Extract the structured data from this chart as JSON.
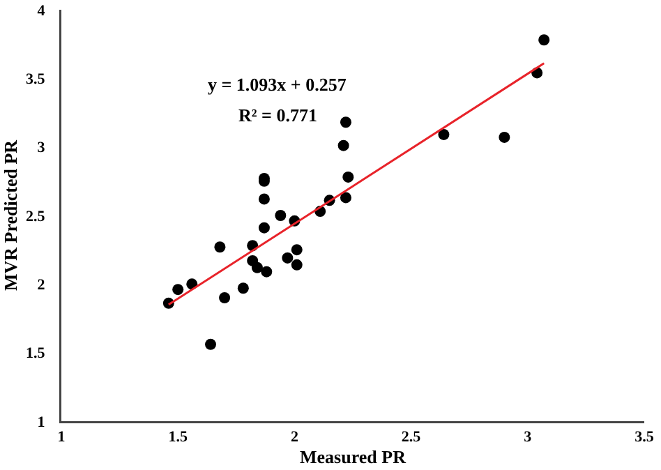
{
  "chart_data": {
    "type": "scatter",
    "xlabel": "Measured PR",
    "ylabel": "MVR Predicted PR",
    "annotations": [
      "y = 1.093x + 0.257",
      "R² = 0.771"
    ],
    "xlim": [
      1,
      3.5
    ],
    "xticks": [
      1,
      1.5,
      2,
      2.5,
      3,
      3.5
    ],
    "ylim": [
      1,
      4
    ],
    "yticks": [
      1,
      1.5,
      2,
      2.5,
      3,
      3.5,
      4
    ],
    "grid": false,
    "marker": "circle",
    "series": [
      {
        "color": "#000000",
        "x": [
          1.46,
          1.5,
          1.56,
          1.64,
          1.68,
          1.7,
          1.78,
          1.82,
          1.82,
          1.84,
          1.87,
          1.87,
          1.87,
          1.87,
          1.88,
          1.94,
          1.97,
          2.0,
          2.01,
          2.01,
          2.11,
          2.15,
          2.21,
          2.22,
          2.23,
          2.22,
          2.64,
          2.9,
          3.04,
          3.07
        ],
        "values": [
          1.86,
          1.96,
          2.0,
          1.56,
          2.27,
          1.9,
          1.97,
          2.28,
          2.17,
          2.12,
          2.77,
          2.75,
          2.62,
          2.41,
          2.09,
          2.5,
          2.19,
          2.46,
          2.25,
          2.14,
          2.53,
          2.61,
          3.01,
          3.18,
          2.78,
          2.63,
          3.09,
          3.07,
          3.54,
          3.78
        ]
      },
      {
        "type": "line",
        "color": "#e8232a",
        "x": [
          1.46,
          3.07
        ],
        "values": [
          1.85,
          3.61
        ],
        "line_style": "solid",
        "marker": "none"
      }
    ]
  }
}
